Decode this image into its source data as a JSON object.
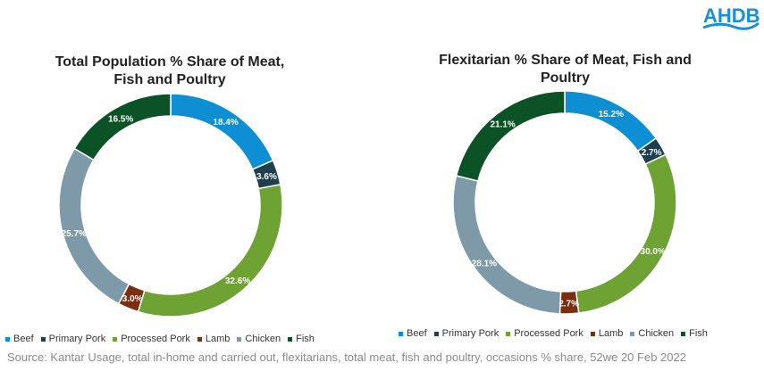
{
  "logo": "AHDB",
  "source": "Source: Kantar Usage, total in-home and carried out, flexitarians, total meat, fish and poultry, occasions % share, 52we 20 Feb 2022",
  "colors": {
    "Beef": "#0E8FD3",
    "Primary Pork": "#1F3E4E",
    "Processed Pork": "#6EA232",
    "Lamb": "#7A2E12",
    "Chicken": "#7E9AA8",
    "Fish": "#0B5326"
  },
  "chart_data": [
    {
      "type": "pie",
      "title_line1": "Total Population % Share of Meat,",
      "title_line2": "Fish and Poultry",
      "categories": [
        "Beef",
        "Primary Pork",
        "Processed Pork",
        "Lamb",
        "Chicken",
        "Fish"
      ],
      "values": [
        18.4,
        3.6,
        32.6,
        3.0,
        25.7,
        16.5
      ],
      "labels": [
        "18.4%",
        "3.6%",
        "32.6%",
        "3.0%",
        "25.7%",
        "16.5%"
      ],
      "legend": "bottom"
    },
    {
      "type": "pie",
      "title_line1": "Flexitarian % Share of Meat, Fish and",
      "title_line2": "Poultry",
      "categories": [
        "Beef",
        "Primary Pork",
        "Processed Pork",
        "Lamb",
        "Chicken",
        "Fish"
      ],
      "values": [
        15.2,
        2.7,
        30.0,
        2.7,
        28.1,
        21.1
      ],
      "labels": [
        "15.2%",
        "2.7%",
        "30.0%",
        "2.7%",
        "28.1%",
        "21.1%"
      ],
      "legend": "bottom"
    }
  ]
}
